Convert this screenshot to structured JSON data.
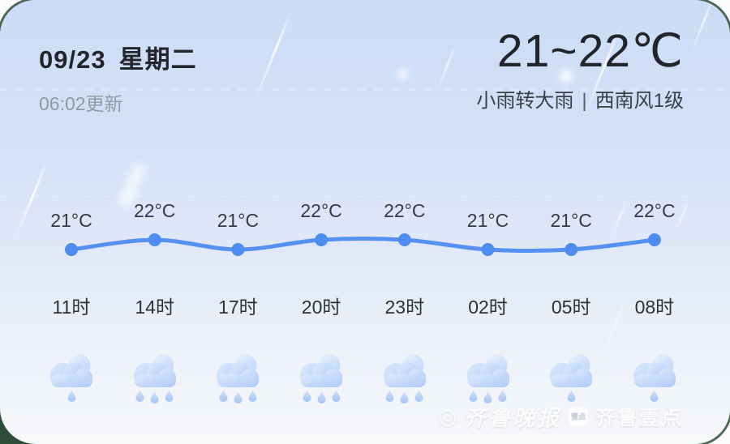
{
  "card": {
    "edge_color": "#2e4d3a",
    "bg_top": "#cbdcf6",
    "bg_bottom": "#f7f8fa"
  },
  "header": {
    "date": "09/23",
    "weekday": "星期二",
    "updated": "06:02更新"
  },
  "summary": {
    "temp_range": "21~22℃",
    "condition": "小雨转大雨",
    "separator": "|",
    "wind": "西南风1级"
  },
  "chart_data": {
    "type": "line",
    "x": [
      "11时",
      "14时",
      "17时",
      "20时",
      "23时",
      "02时",
      "05时",
      "08时"
    ],
    "series": [
      {
        "name": "temperature_c",
        "values": [
          21,
          22,
          21,
          22,
          22,
          21,
          21,
          22
        ]
      }
    ],
    "point_labels": [
      "21°C",
      "22°C",
      "21°C",
      "22°C",
      "22°C",
      "21°C",
      "21°C",
      "22°C"
    ],
    "ylim": [
      20.5,
      22.5
    ],
    "grid": false,
    "legend": "none",
    "line_color": "#5590f2",
    "dot_color": "#4d8df2",
    "label_color": "#353b43",
    "hour_color": "#2c323a",
    "icon": "rain-cloud-icon",
    "rain_drops": [
      1,
      3,
      3,
      3,
      3,
      3,
      1,
      1
    ]
  },
  "watermark": {
    "logo": "◎",
    "publisher": "齐鲁晚报",
    "badge": "壹点",
    "brand": "齐鲁壹点"
  }
}
